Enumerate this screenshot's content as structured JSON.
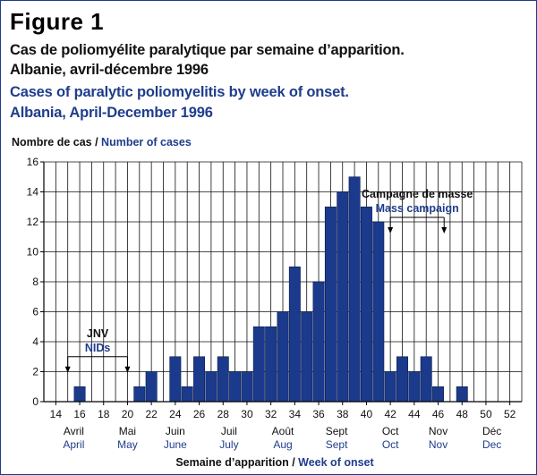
{
  "figure": {
    "label": "Figure 1",
    "title_fr_line1": "Cas de poliomyélite paralytique par semaine d’apparition.",
    "title_fr_line2": "Albanie, avril-décembre 1996",
    "title_en_line1": "Cases of paralytic poliomyelitis by week of onset.",
    "title_en_line2": "Albania, April-December 1996"
  },
  "colors": {
    "bar": "#1b3a8c",
    "bar_stroke": "#0c1d4d",
    "english_text": "#1f3d8c",
    "frame": "#1e3a8a"
  },
  "chart_data": {
    "type": "bar",
    "ylabel_fr": "Nombre de cas",
    "ylabel_sep": " / ",
    "ylabel_en": "Number of cases",
    "xlabel_fr": "Semaine d’apparition",
    "xlabel_sep": " / ",
    "xlabel_en": "Week of onset",
    "ylim": [
      0,
      16
    ],
    "yticks": [
      0,
      2,
      4,
      6,
      8,
      10,
      12,
      14,
      16
    ],
    "grid_y": true,
    "xlim": [
      13,
      53
    ],
    "xticks": [
      14,
      16,
      18,
      20,
      22,
      24,
      26,
      28,
      30,
      32,
      34,
      36,
      38,
      40,
      42,
      44,
      46,
      48,
      50,
      52
    ],
    "weeks": [
      14,
      15,
      16,
      17,
      18,
      19,
      20,
      21,
      22,
      23,
      24,
      25,
      26,
      27,
      28,
      29,
      30,
      31,
      32,
      33,
      34,
      35,
      36,
      37,
      38,
      39,
      40,
      41,
      42,
      43,
      44,
      45,
      46,
      47,
      48,
      49,
      50,
      51,
      52
    ],
    "values": [
      0,
      0,
      1,
      0,
      0,
      0,
      0,
      1,
      2,
      0,
      3,
      1,
      3,
      2,
      3,
      2,
      2,
      5,
      5,
      6,
      9,
      6,
      8,
      13,
      14,
      15,
      13,
      12,
      2,
      3,
      2,
      3,
      1,
      0,
      1,
      0,
      0,
      0,
      0
    ],
    "months": [
      {
        "fr": "Avril",
        "en": "April",
        "week": 15.5
      },
      {
        "fr": "Mai",
        "en": "May",
        "week": 20
      },
      {
        "fr": "Juin",
        "en": "June",
        "week": 24
      },
      {
        "fr": "Juil",
        "en": "July",
        "week": 28.5
      },
      {
        "fr": "Août",
        "en": "Aug",
        "week": 33
      },
      {
        "fr": "Sept",
        "en": "Sept",
        "week": 37.5
      },
      {
        "fr": "Oct",
        "en": "Oct",
        "week": 42
      },
      {
        "fr": "Nov",
        "en": "Nov",
        "week": 46
      },
      {
        "fr": "Déc",
        "en": "Dec",
        "week": 50.5
      }
    ],
    "annotations": [
      {
        "fr": "JNV",
        "en": "NIDs",
        "from_week": 15,
        "to_week": 20,
        "level": 3
      },
      {
        "fr": "Campagne de masse",
        "en": "Mass campaign",
        "from_week": 42,
        "to_week": 46.5,
        "level": 12.3
      }
    ]
  }
}
